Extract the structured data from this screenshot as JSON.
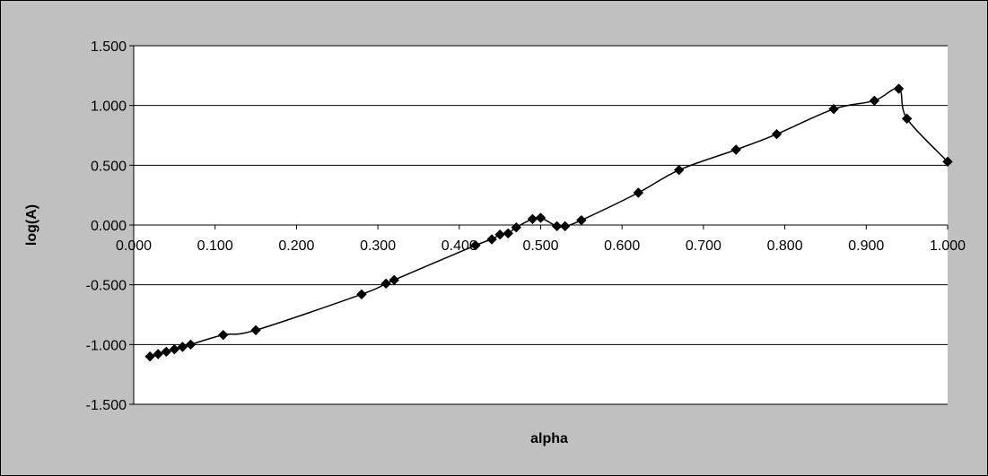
{
  "chart_data": {
    "type": "line",
    "title": "",
    "xlabel": "alpha",
    "ylabel": "log(A)",
    "xlim": [
      0,
      1
    ],
    "ylim": [
      -1.5,
      1.5
    ],
    "x_ticks": [
      "0.000",
      "0.100",
      "0.200",
      "0.300",
      "0.400",
      "0.500",
      "0.600",
      "0.700",
      "0.800",
      "0.900",
      "1.000"
    ],
    "y_ticks": [
      "1.500",
      "1.000",
      "0.500",
      "0.000",
      "-0.500",
      "-1.000",
      "-1.500"
    ],
    "grid": "horizontal",
    "legend": "none",
    "line_color": "#000000",
    "marker": "diamond",
    "plot_background": "#ffffff",
    "chart_background": "#c0c0c0",
    "series": [
      {
        "x": [
          0.02,
          0.03,
          0.04,
          0.05,
          0.06,
          0.07,
          0.11,
          0.15,
          0.28,
          0.31,
          0.32,
          0.42,
          0.44,
          0.45,
          0.46,
          0.47,
          0.49,
          0.5,
          0.52,
          0.53,
          0.55,
          0.62,
          0.67,
          0.74,
          0.79,
          0.86,
          0.91,
          0.94,
          0.95,
          1.0
        ],
        "y": [
          -1.1,
          -1.08,
          -1.06,
          -1.04,
          -1.02,
          -1.0,
          -0.92,
          -0.88,
          -0.58,
          -0.49,
          -0.46,
          -0.17,
          -0.12,
          -0.08,
          -0.07,
          -0.02,
          0.05,
          0.06,
          -0.01,
          -0.01,
          0.04,
          0.27,
          0.46,
          0.63,
          0.76,
          0.97,
          1.04,
          1.14,
          0.89,
          0.53
        ]
      }
    ]
  }
}
